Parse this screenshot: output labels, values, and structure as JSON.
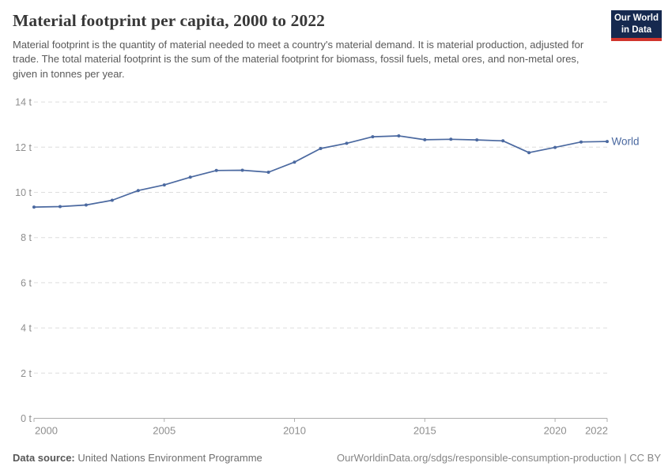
{
  "header": {
    "title": "Material footprint per capita, 2000 to 2022",
    "subtitle": "Material footprint is the quantity of material needed to meet a country's material demand. It is material production, adjusted for trade. The total material footprint is the sum of the material footprint for biomass, fossil fuels, metal ores, and non-metal ores, given in tonnes per year.",
    "logo": {
      "line1": "Our World",
      "line2": "in Data",
      "bg_color": "#16294f",
      "accent_color": "#d0342c"
    }
  },
  "chart_data": {
    "type": "line",
    "title": "Material footprint per capita, 2000 to 2022",
    "xlabel": "",
    "ylabel": "",
    "unit": "t",
    "ylim": [
      0,
      14
    ],
    "yticks": [
      0,
      2,
      4,
      6,
      8,
      10,
      12,
      14
    ],
    "xticks": [
      2000,
      2005,
      2010,
      2015,
      2020,
      2022
    ],
    "grid": "horizontal-dashed",
    "legend_position": "end-of-line-label",
    "x": [
      2000,
      2001,
      2002,
      2003,
      2004,
      2005,
      2006,
      2007,
      2008,
      2009,
      2010,
      2011,
      2012,
      2013,
      2014,
      2015,
      2016,
      2017,
      2018,
      2019,
      2020,
      2021,
      2022
    ],
    "series": [
      {
        "name": "World",
        "color": "#4b69a0",
        "values": [
          9.35,
          9.37,
          9.44,
          9.65,
          10.08,
          10.33,
          10.67,
          10.97,
          10.98,
          10.89,
          11.34,
          11.94,
          12.17,
          12.46,
          12.5,
          12.33,
          12.35,
          12.32,
          12.28,
          11.76,
          11.99,
          12.23,
          12.25
        ]
      }
    ],
    "colors": {
      "gridline": "#dedede",
      "axis_line": "#adadad",
      "tick_label": "#8e8e8e"
    }
  },
  "footer": {
    "datasource_label": "Data source:",
    "datasource_value": "United Nations Environment Programme",
    "url": "OurWorldinData.org/sdgs/responsible-consumption-production",
    "separator": "|",
    "license": "CC BY"
  }
}
